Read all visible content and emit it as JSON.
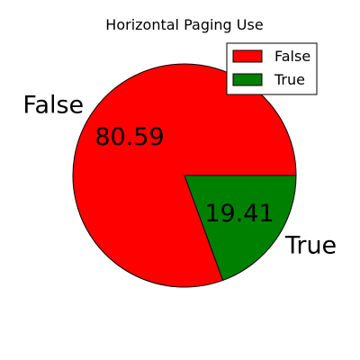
{
  "chart_data": {
    "type": "pie",
    "title": "Horizontal Paging Use",
    "slices": [
      {
        "label": "False",
        "value": 80.59,
        "pct_label": "80.59",
        "color": "#ff0000"
      },
      {
        "label": "True",
        "value": 19.41,
        "pct_label": "19.41",
        "color": "#008000"
      }
    ],
    "legend": {
      "placement": "top-right",
      "entries": [
        "False",
        "True"
      ]
    },
    "start_angle_deg": 0,
    "direction": "counterclockwise"
  }
}
